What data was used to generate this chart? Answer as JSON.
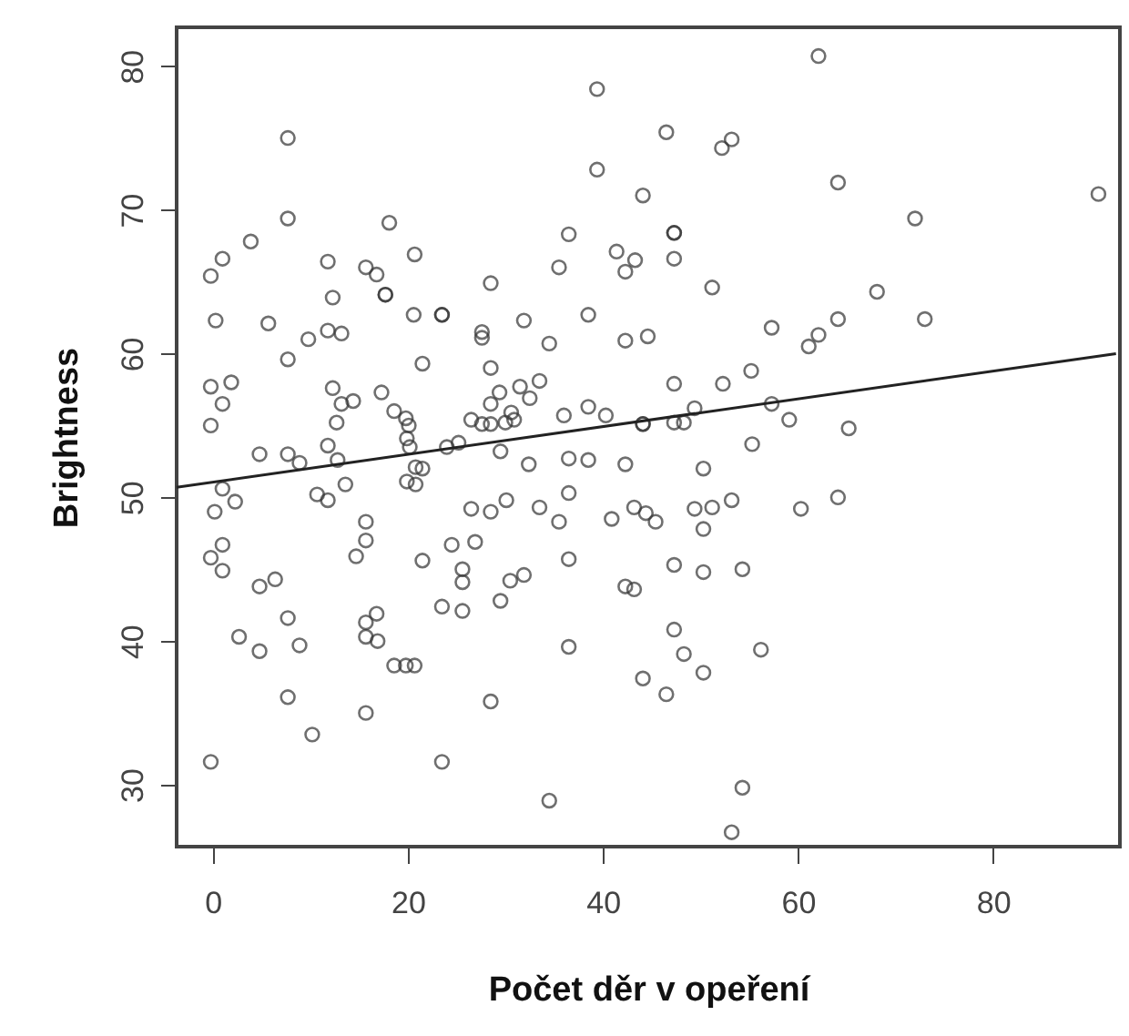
{
  "chart_data": {
    "type": "scatter",
    "xlabel": "Počet děr v opeření",
    "ylabel": "Brightness",
    "xlim": [
      -3.7,
      93
    ],
    "ylim": [
      25.7,
      82.7
    ],
    "xticks": [
      0,
      20,
      40,
      60,
      80
    ],
    "yticks": [
      30,
      40,
      50,
      60,
      70,
      80
    ],
    "grid": false,
    "series": [
      {
        "marker": "circle",
        "color": "#333333",
        "x": [
          39.4,
          7.7,
          39.4,
          44.1,
          7.7,
          18.1,
          3.9,
          1.0,
          -0.2,
          36.5,
          11.8,
          15.7,
          16.8,
          20.7,
          41.4,
          43.3,
          42.3,
          35.5,
          28.5,
          12.3,
          17.7,
          17.7,
          23.5,
          23.5,
          20.6,
          38.5,
          31.9,
          0.3,
          5.7,
          27.6,
          27.6,
          11.8,
          13.2,
          9.8,
          42.3,
          44.6,
          34.5,
          7.7,
          21.5,
          28.5,
          -0.2,
          1.9,
          1.0,
          12.3,
          13.2,
          14.4,
          17.3,
          18.6,
          29.4,
          28.5,
          31.5,
          32.5,
          33.5,
          30.6,
          36.0,
          38.5,
          40.3,
          -0.2,
          12.7,
          19.8,
          20.1,
          26.5,
          27.6,
          28.5,
          30.0,
          30.9,
          44.1,
          44.1,
          62.1,
          46.5,
          52.2,
          53.2,
          64.1,
          90.8,
          72.0,
          47.3,
          47.3,
          47.3,
          51.2,
          68.1,
          64.1,
          73.0,
          57.3,
          61.1,
          62.1,
          47.3,
          52.3,
          55.2,
          49.4,
          57.3,
          47.3,
          48.3,
          59.1,
          65.2,
          4.8,
          7.7,
          8.9,
          11.8,
          12.8,
          13.6,
          10.7,
          11.8,
          1.0,
          0.2,
          2.3,
          19.9,
          20.2,
          20.8,
          21.5,
          19.9,
          20.8,
          24.0,
          25.2,
          29.5,
          32.4,
          36.5,
          38.5,
          42.3,
          36.5,
          26.5,
          28.5,
          30.1,
          33.5,
          35.5,
          40.9,
          43.2,
          44.4,
          15.7,
          15.7,
          14.7,
          -0.2,
          1.0,
          1.0,
          21.5,
          24.5,
          26.9,
          25.6,
          25.6,
          30.5,
          31.9,
          29.5,
          23.5,
          25.6,
          36.5,
          42.3,
          43.2,
          36.5,
          44.1,
          4.8,
          6.4,
          7.7,
          8.9,
          4.8,
          2.7,
          15.7,
          16.8,
          15.7,
          16.9,
          18.6,
          19.8,
          20.7,
          7.7,
          28.5,
          15.7,
          10.2,
          -0.2,
          23.5,
          34.5,
          55.3,
          50.3,
          49.4,
          51.2,
          53.2,
          50.3,
          60.3,
          64.1,
          45.4,
          47.3,
          50.3,
          54.3,
          47.3,
          48.3,
          50.3,
          46.5,
          56.2,
          54.3,
          53.2
        ],
        "values": [
          78.4,
          75.0,
          72.8,
          71.0,
          69.4,
          69.1,
          67.8,
          66.6,
          65.4,
          68.3,
          66.4,
          66.0,
          65.5,
          66.9,
          67.1,
          66.5,
          65.7,
          66.0,
          64.9,
          63.9,
          64.1,
          64.1,
          62.7,
          62.7,
          62.7,
          62.7,
          62.3,
          62.3,
          62.1,
          61.5,
          61.1,
          61.6,
          61.4,
          61.0,
          60.9,
          61.2,
          60.7,
          59.6,
          59.3,
          59.0,
          57.7,
          58.0,
          56.5,
          57.6,
          56.5,
          56.7,
          57.3,
          56.0,
          57.3,
          56.5,
          57.7,
          56.9,
          58.1,
          55.9,
          55.7,
          56.3,
          55.7,
          55.0,
          55.2,
          55.5,
          55.0,
          55.4,
          55.1,
          55.1,
          55.2,
          55.4,
          55.1,
          55.1,
          80.7,
          75.4,
          74.3,
          74.9,
          71.9,
          71.1,
          69.4,
          68.4,
          68.4,
          66.6,
          64.6,
          64.3,
          62.4,
          62.4,
          61.8,
          60.5,
          61.3,
          57.9,
          57.9,
          58.8,
          56.2,
          56.5,
          55.2,
          55.2,
          55.4,
          54.8,
          53.0,
          53.0,
          52.4,
          53.6,
          52.6,
          50.9,
          50.2,
          49.8,
          50.6,
          49.0,
          49.7,
          54.1,
          53.5,
          52.1,
          52.0,
          51.1,
          50.9,
          53.5,
          53.8,
          53.2,
          52.3,
          52.7,
          52.6,
          52.3,
          50.3,
          49.2,
          49.0,
          49.8,
          49.3,
          48.3,
          48.5,
          49.3,
          48.9,
          48.3,
          47.0,
          45.9,
          45.8,
          46.7,
          44.9,
          45.6,
          46.7,
          46.9,
          45.0,
          44.1,
          44.2,
          44.6,
          42.8,
          42.4,
          42.1,
          45.7,
          43.8,
          43.6,
          39.6,
          37.4,
          43.8,
          44.3,
          41.6,
          39.7,
          39.3,
          40.3,
          41.3,
          41.9,
          40.3,
          40.0,
          38.3,
          38.3,
          38.3,
          36.1,
          35.8,
          35.0,
          33.5,
          31.6,
          31.6,
          28.9,
          53.7,
          52.0,
          49.2,
          49.3,
          49.8,
          47.8,
          49.2,
          50.0,
          48.3,
          45.3,
          44.8,
          45.0,
          40.8,
          39.1,
          37.8,
          36.3,
          39.4,
          29.8,
          26.7
        ]
      },
      {
        "type": "line",
        "color": "#222222",
        "x": [
          -3.7,
          92.6
        ],
        "values": [
          50.7,
          60.0
        ]
      }
    ]
  }
}
